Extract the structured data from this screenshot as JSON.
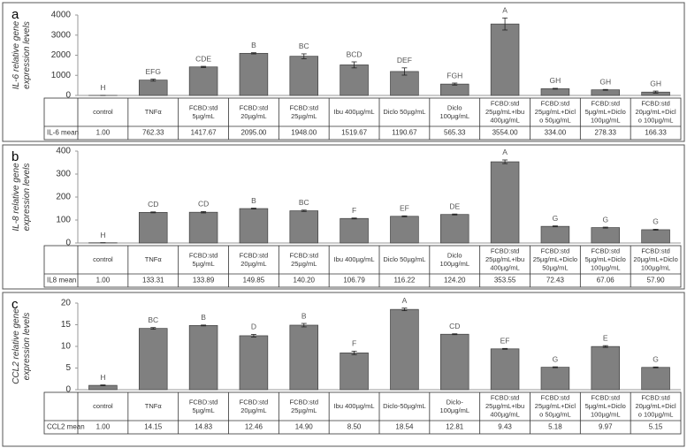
{
  "chart_data": [
    {
      "type": "bar",
      "panel": "a",
      "y_label": [
        "IL-6 relative gene",
        "expression levels"
      ],
      "table_label": "IL-6 mean",
      "categories": [
        [
          "control"
        ],
        [
          "TNFα"
        ],
        [
          "FCBD:std",
          "5µg/mL"
        ],
        [
          "FCBD:std",
          "20µg/mL"
        ],
        [
          "FCBD:std",
          "25µg/mL"
        ],
        [
          "Ibu 400µg/mL"
        ],
        [
          "Diclo 50µg/mL"
        ],
        [
          "Diclo",
          "100µg/mL"
        ],
        [
          "FCBD:std",
          "25µg/mL+Ibu",
          "400µg/mL"
        ],
        [
          "FCBD:std",
          "25µg/mL+Dicl",
          "o 50µg/mL"
        ],
        [
          "FCBD:std",
          "5µg/mL+Diclo",
          "100µg/mL"
        ],
        [
          "FCBD:std",
          "20µg/mL+Dicl",
          "o 100µg/mL"
        ]
      ],
      "values": [
        1.0,
        762.33,
        1417.67,
        2095.0,
        1948.0,
        1519.67,
        1190.67,
        565.33,
        3554.0,
        334.0,
        278.33,
        166.33
      ],
      "value_labels": [
        "1.00",
        "762.33",
        "1417.67",
        "2095.00",
        "1948.00",
        "1519.67",
        "1190.67",
        "565.33",
        "3554.00",
        "334.00",
        "278.33",
        "166.33"
      ],
      "errors": [
        0,
        50,
        30,
        30,
        120,
        150,
        180,
        50,
        300,
        20,
        20,
        50
      ],
      "letters": [
        "H",
        "EFG",
        "CDE",
        "B",
        "BC",
        "BCD",
        "DEF",
        "FGH",
        "A",
        "GH",
        "GH",
        "GH"
      ],
      "color": "#808080",
      "ylim": [
        0,
        4000
      ],
      "yticks": [
        0,
        1000,
        2000,
        3000,
        4000
      ],
      "grid": false
    },
    {
      "type": "bar",
      "panel": "b",
      "y_label": [
        "IL-8 relative gene",
        "expression levels"
      ],
      "table_label": "IL8 mean",
      "categories": [
        [
          "control"
        ],
        [
          "TNFα"
        ],
        [
          "FCBD:std",
          "5µg/mL"
        ],
        [
          "FCBD:std",
          "20µg/mL"
        ],
        [
          "FCBD:std",
          "25µg/mL"
        ],
        [
          "Ibu 400µg/mL"
        ],
        [
          "Diclo 50µg/mL"
        ],
        [
          "Diclo",
          "100µg/mL"
        ],
        [
          "FCBD:std",
          "25µg/mL+Ibu",
          "400µg/mL"
        ],
        [
          "FCBD:std",
          "25µg/mL+Diclo",
          "50µg/mL"
        ],
        [
          "FCBD:std",
          "5µg/mL+Diclo",
          "100µg/mL"
        ],
        [
          "FCBD:std",
          "20µg/mL+Diclo",
          "100µg/mL"
        ]
      ],
      "values": [
        1.0,
        133.31,
        133.89,
        149.85,
        140.2,
        106.79,
        116.22,
        124.2,
        353.55,
        72.43,
        67.06,
        57.9
      ],
      "value_labels": [
        "1.00",
        "133.31",
        "133.89",
        "149.85",
        "140.20",
        "106.79",
        "116.22",
        "124.20",
        "353.55",
        "72.43",
        "67.06",
        "57.90"
      ],
      "errors": [
        0,
        2,
        3,
        2,
        3,
        2,
        2,
        2,
        8,
        2,
        2,
        2
      ],
      "letters": [
        "H",
        "CD",
        "CD",
        "B",
        "BC",
        "F",
        "EF",
        "DE",
        "A",
        "G",
        "G",
        "G"
      ],
      "color": "#808080",
      "ylim": [
        0,
        400
      ],
      "yticks": [
        0,
        100,
        200,
        300,
        400
      ],
      "grid": false
    },
    {
      "type": "bar",
      "panel": "c",
      "y_label": [
        "CCL2 relative gene",
        "expression levels"
      ],
      "table_label": "CCL2 mean",
      "categories": [
        [
          "control"
        ],
        [
          "TNFα"
        ],
        [
          "FCBD:std",
          "5µg/mL"
        ],
        [
          "FCBD:std",
          "20µg/mL"
        ],
        [
          "FCBD:std",
          "25µg/mL"
        ],
        [
          "Ibu 400µg/mL"
        ],
        [
          "Diclo-50µg/mL"
        ],
        [
          "Diclo-",
          "100µg/mL"
        ],
        [
          "FCBD:std",
          "25µg/mL+Ibu",
          "400µg/mL"
        ],
        [
          "FCBD:std",
          "25µg/mL+Dicl",
          "o 50µg/mL"
        ],
        [
          "FCBD:std",
          "5µg/mL+Diclo",
          "100µg/mL"
        ],
        [
          "FCBD:std",
          "20µg/mL+Dicl",
          "o 100µg/mL"
        ]
      ],
      "values": [
        1.0,
        14.15,
        14.83,
        12.46,
        14.9,
        8.5,
        18.54,
        12.81,
        9.43,
        5.18,
        9.97,
        5.15
      ],
      "value_labels": [
        "1.00",
        "14.15",
        "14.83",
        "12.46",
        "14.90",
        "8.50",
        "18.54",
        "12.81",
        "9.43",
        "5.18",
        "9.97",
        "5.15"
      ],
      "errors": [
        0.1,
        0.2,
        0.1,
        0.3,
        0.4,
        0.4,
        0.3,
        0.1,
        0.1,
        0.1,
        0.2,
        0.1
      ],
      "letters": [
        "H",
        "BC",
        "B",
        "D",
        "B",
        "F",
        "A",
        "CD",
        "EF",
        "G",
        "E",
        "G"
      ],
      "color": "#808080",
      "ylim": [
        0,
        20
      ],
      "yticks": [
        0,
        5,
        10,
        15,
        20
      ],
      "grid": false
    }
  ]
}
